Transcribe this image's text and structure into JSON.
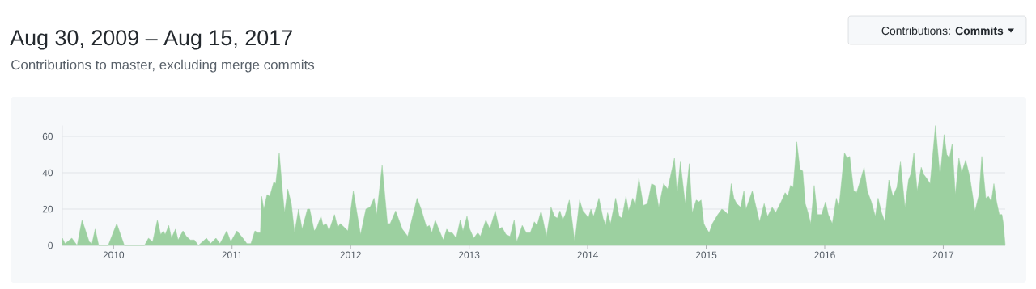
{
  "chart_data": {
    "type": "area",
    "title": "Aug 30, 2009 – Aug 15, 2017",
    "subtitle": "Contributions to master, excluding merge commits",
    "annotations": [
      "Contributions: **Commits**"
    ],
    "x": [
      2009.568,
      2009.591,
      2009.648,
      2009.693,
      2009.734,
      2009.795,
      2009.818,
      2009.845,
      2009.875,
      2009.955,
      2010.027,
      2010.091,
      2010.261,
      2010.295,
      2010.33,
      2010.37,
      2010.398,
      2010.42,
      2010.436,
      2010.466,
      2010.489,
      2010.523,
      2010.545,
      2010.586,
      2010.614,
      2010.648,
      2010.682,
      2010.716,
      2010.784,
      2010.818,
      2010.864,
      2010.898,
      2010.955,
      2010.989,
      2011.041,
      2011.091,
      2011.125,
      2011.159,
      2011.193,
      2011.216,
      2011.239,
      2011.25,
      2011.268,
      2011.295,
      2011.318,
      2011.352,
      2011.368,
      2011.398,
      2011.425,
      2011.443,
      2011.47,
      2011.5,
      2011.527,
      2011.561,
      2011.591,
      2011.636,
      2011.655,
      2011.693,
      2011.716,
      2011.75,
      2011.768,
      2011.795,
      2011.818,
      2011.864,
      2011.891,
      2011.914,
      2011.977,
      2012.023,
      2012.084,
      2012.129,
      2012.164,
      2012.198,
      2012.22,
      2012.266,
      2012.311,
      2012.334,
      2012.38,
      2012.436,
      2012.482,
      2012.561,
      2012.595,
      2012.641,
      2012.664,
      2012.686,
      2012.714,
      2012.743,
      2012.782,
      2012.811,
      2012.834,
      2012.857,
      2012.891,
      2012.925,
      2012.948,
      2012.982,
      2013.005,
      2013.039,
      2013.073,
      2013.095,
      2013.141,
      2013.175,
      2013.22,
      2013.255,
      2013.277,
      2013.311,
      2013.345,
      2013.38,
      2013.402,
      2013.448,
      2013.482,
      2013.516,
      2013.55,
      2013.573,
      2013.607,
      2013.652,
      2013.691,
      2013.72,
      2013.743,
      2013.766,
      2013.789,
      2013.811,
      2013.845,
      2013.868,
      2013.891,
      2013.932,
      2013.959,
      2013.986,
      2014.005,
      2014.027,
      2014.05,
      2014.095,
      2014.13,
      2014.152,
      2014.168,
      2014.193,
      2014.236,
      2014.266,
      2014.289,
      2014.323,
      2014.345,
      2014.364,
      2014.38,
      2014.402,
      2014.432,
      2014.47,
      2014.505,
      2014.539,
      2014.568,
      2014.6,
      2014.641,
      2014.675,
      2014.732,
      2014.755,
      2014.782,
      2014.823,
      2014.857,
      2014.882,
      2014.916,
      2014.939,
      2014.957,
      2014.98,
      2014.995,
      2015.025,
      2015.052,
      2015.098,
      2015.132,
      2015.155,
      2015.184,
      2015.211,
      2015.234,
      2015.257,
      2015.291,
      2015.318,
      2015.336,
      2015.389,
      2015.45,
      2015.489,
      2015.518,
      2015.557,
      2015.586,
      2015.632,
      2015.666,
      2015.689,
      2015.711,
      2015.734,
      2015.764,
      2015.791,
      2015.814,
      2015.836,
      2015.859,
      2015.882,
      2015.911,
      2015.939,
      2015.973,
      2016.007,
      2016.03,
      2016.064,
      2016.098,
      2016.12,
      2016.166,
      2016.189,
      2016.211,
      2016.245,
      2016.268,
      2016.302,
      2016.332,
      2016.359,
      2016.393,
      2016.427,
      2016.45,
      2016.48,
      2016.507,
      2016.541,
      2016.575,
      2016.609,
      2016.639,
      2016.677,
      2016.707,
      2016.73,
      2016.752,
      2016.78,
      2016.814,
      2016.836,
      2016.859,
      2016.889,
      2016.934,
      2016.973,
      2017.007,
      2017.03,
      2017.052,
      2017.075,
      2017.102,
      2017.132,
      2017.155,
      2017.189,
      2017.223,
      2017.268,
      2017.302,
      2017.325,
      2017.359,
      2017.382,
      2017.405,
      2017.427,
      2017.45,
      2017.473,
      2017.495,
      2017.507,
      2017.523
    ],
    "values": [
      4,
      1,
      4,
      0,
      14,
      2,
      1,
      9,
      0,
      0,
      12,
      0,
      0,
      4,
      2,
      14,
      6,
      8,
      6,
      11,
      4,
      9,
      3,
      8,
      5,
      3,
      3,
      0,
      4,
      1,
      4,
      1,
      8,
      2,
      8,
      4,
      1,
      1,
      8,
      7,
      7,
      27,
      20,
      28,
      27,
      35,
      34,
      51,
      30,
      18,
      31,
      23,
      7,
      20,
      9,
      20,
      20,
      8,
      10,
      16,
      11,
      12,
      8,
      17,
      10,
      12,
      8,
      30,
      6,
      20,
      21,
      26,
      17,
      44,
      12,
      12,
      19,
      9,
      5,
      26,
      20,
      10,
      11,
      7,
      14,
      9,
      3,
      9,
      7,
      7,
      4,
      14,
      8,
      16,
      9,
      4,
      7,
      5,
      14,
      9,
      19,
      9,
      10,
      6,
      5,
      14,
      2,
      11,
      7,
      7,
      13,
      11,
      19,
      5,
      21,
      16,
      15,
      19,
      14,
      17,
      25,
      14,
      2,
      25,
      19,
      17,
      15,
      20,
      16,
      26,
      15,
      11,
      18,
      12,
      26,
      16,
      15,
      27,
      19,
      23,
      26,
      22,
      37,
      22,
      23,
      34,
      33,
      21,
      34,
      31,
      48,
      28,
      46,
      23,
      45,
      18,
      25,
      24,
      25,
      12,
      10,
      7,
      12,
      17,
      20,
      19,
      17,
      34,
      26,
      23,
      21,
      30,
      20,
      30,
      13,
      23,
      16,
      21,
      18,
      24,
      29,
      27,
      33,
      32,
      57,
      42,
      41,
      23,
      18,
      12,
      33,
      17,
      17,
      24,
      17,
      12,
      26,
      21,
      51,
      48,
      49,
      30,
      29,
      36,
      43,
      30,
      24,
      16,
      26,
      18,
      13,
      36,
      27,
      32,
      46,
      21,
      36,
      40,
      51,
      30,
      43,
      39,
      37,
      34,
      66,
      38,
      61,
      50,
      48,
      56,
      28,
      48,
      40,
      47,
      38,
      19,
      28,
      49,
      26,
      27,
      24,
      34,
      24,
      17,
      17,
      12,
      0
    ],
    "color": "#9cd0a0",
    "xlim": [
      2009.568,
      2017.523
    ],
    "ylim": [
      0,
      66
    ],
    "xticks": [
      2010,
      2011,
      2012,
      2013,
      2014,
      2015,
      2016,
      2017
    ],
    "yticks": [
      0,
      20,
      40,
      60
    ],
    "grid": "y"
  }
}
